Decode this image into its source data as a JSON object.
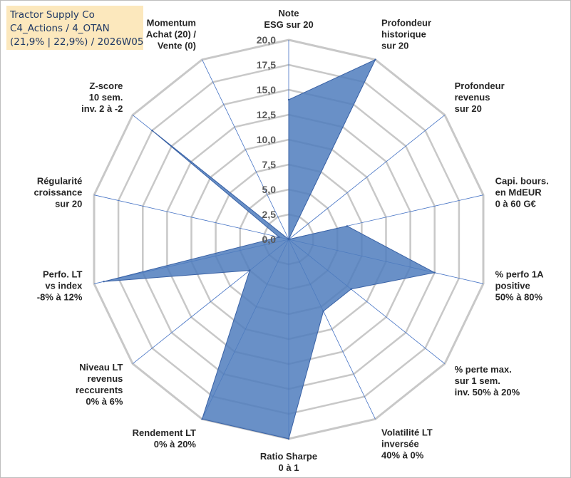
{
  "title_box": {
    "line1": "Tractor Supply Co",
    "line2": "C4_Actions / 4_OTAN",
    "line3": "(21,9% | 22,9%) / 2026W05"
  },
  "colors": {
    "fill": "#4f7dbd",
    "stroke": "#3a62a5",
    "grid": "#c8c8c8",
    "spoke": "#4472c4",
    "title_bg": "#fce8bd"
  },
  "chart_data": {
    "type": "radar",
    "rmin": 0,
    "rmax": 20,
    "tick_labels": [
      "0,0",
      "2,5",
      "5,0",
      "7,5",
      "10,0",
      "12,5",
      "15,0",
      "17,5",
      "20,0"
    ],
    "axes": [
      {
        "lines": [
          "Note",
          "ESG sur 20"
        ],
        "value": 14
      },
      {
        "lines": [
          "Profondeur",
          "historique",
          "sur 20"
        ],
        "value": 20
      },
      {
        "lines": [
          "Profondeur",
          "revenus",
          "sur 20"
        ],
        "value": 0
      },
      {
        "lines": [
          "Capi. bours.",
          "en MdEUR",
          "0 à 60 G€"
        ],
        "value": 6
      },
      {
        "lines": [
          "% perfo 1A",
          "positive",
          "50% à 80%"
        ],
        "value": 15
      },
      {
        "lines": [
          "% perte max.",
          "sur 1 sem.",
          "inv. 50% à 20%"
        ],
        "value": 8
      },
      {
        "lines": [
          "Volatilité LT",
          "inversée",
          "40% à 0%"
        ],
        "value": 8
      },
      {
        "lines": [
          "Ratio Sharpe",
          "0 à 1"
        ],
        "value": 20
      },
      {
        "lines": [
          "Rendement LT",
          "0% à 20%"
        ],
        "value": 20
      },
      {
        "lines": [
          "Niveau LT",
          "revenus",
          "reccurents",
          "0% à 6%"
        ],
        "value": 5
      },
      {
        "lines": [
          "Perfo. LT",
          "vs index",
          "-8% à 12%"
        ],
        "value": 19
      },
      {
        "lines": [
          "Régularité",
          "croissance",
          "sur 20"
        ],
        "value": 1
      },
      {
        "lines": [
          "Z-score",
          "10 sem.",
          "inv. 2 à -2"
        ],
        "value": 17.5
      },
      {
        "lines": [
          "Momentum",
          "Achat (20) /",
          "Vente (0)"
        ],
        "value": 0
      }
    ]
  }
}
